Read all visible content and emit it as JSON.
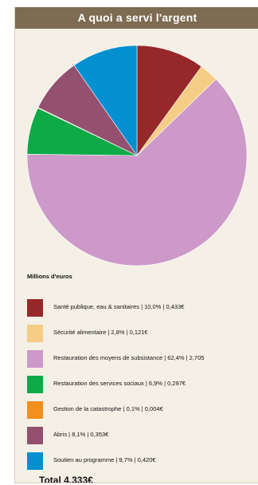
{
  "title": "A quoi a servi l'argent",
  "units_label": "Millions d'euros",
  "total_label": "Total 4,333€",
  "chart_data": {
    "type": "pie",
    "title": "A quoi a servi l'argent",
    "slices": [
      {
        "label": "Santé publique, eau & sanitaires | 10,0% | 0,433€",
        "name": "Santé publique, eau & sanitaires",
        "percent": 10.0,
        "value": 0.433,
        "color": "#97282a"
      },
      {
        "label": "Sécurité alimentaire | 2,8% | 0,121€",
        "name": "Sécurité alimentaire",
        "percent": 2.8,
        "value": 0.121,
        "color": "#f5cd87"
      },
      {
        "label": "Restauration des moyens de subsistance | 62,4% | 2,705",
        "name": "Restauration des moyens de subsistance",
        "percent": 62.4,
        "value": 2.705,
        "color": "#cc99c9"
      },
      {
        "label": "Restauration des services sociaux | 6,9% | 0,297€",
        "name": "Restauration des services sociaux",
        "percent": 6.9,
        "value": 0.297,
        "color": "#0eaa48"
      },
      {
        "label": "Gestion de la catastrophe | 0,1% | 0,004€",
        "name": "Gestion de la catastrophe",
        "percent": 0.1,
        "value": 0.004,
        "color": "#f3901d"
      },
      {
        "label": "Abris | 8,1% | 0,353€",
        "name": "Abris",
        "percent": 8.1,
        "value": 0.353,
        "color": "#93506f"
      },
      {
        "label": "Soutien au programme  | 9,7% | 0,420€",
        "name": "Soutien au programme",
        "percent": 9.7,
        "value": 0.42,
        "color": "#0290d1"
      }
    ]
  }
}
